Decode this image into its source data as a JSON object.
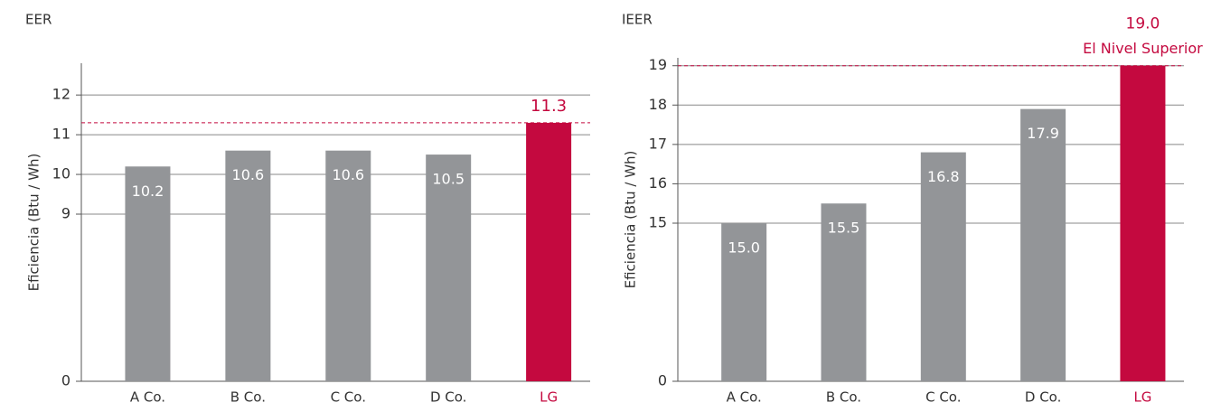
{
  "chart_data": [
    {
      "type": "bar",
      "title": "EER",
      "y_label": "Eficiencia (Btu / Wh)",
      "categories": [
        "A Co.",
        "B Co.",
        "C Co.",
        "D Co.",
        "LG"
      ],
      "values": [
        10.2,
        10.6,
        10.6,
        10.5,
        11.3
      ],
      "colors": [
        "#939598",
        "#939598",
        "#939598",
        "#939598",
        "#c4093f"
      ],
      "ylim": [
        0,
        12.8
      ],
      "ybreak": [
        0,
        9
      ],
      "yticks": [
        0,
        9,
        10,
        11,
        12
      ],
      "grid": true
    },
    {
      "type": "bar",
      "title": "IEER",
      "y_label": "Eficiencia (Btu / Wh)",
      "categories": [
        "A Co.",
        "B Co.",
        "C Co.",
        "D Co.",
        "LG"
      ],
      "values": [
        15,
        15.5,
        16.8,
        17.9,
        19
      ],
      "value_labels": [
        "15.0",
        "15.5",
        "16.8",
        "17.9",
        "19.0"
      ],
      "annotation": "El Nivel Superior",
      "colors": [
        "#939598",
        "#939598",
        "#939598",
        "#939598",
        "#c4093f"
      ],
      "ylim": [
        0,
        19.2
      ],
      "ybreak": [
        0,
        15
      ],
      "yticks": [
        0,
        15,
        16,
        17,
        18,
        19
      ],
      "grid": true
    }
  ]
}
